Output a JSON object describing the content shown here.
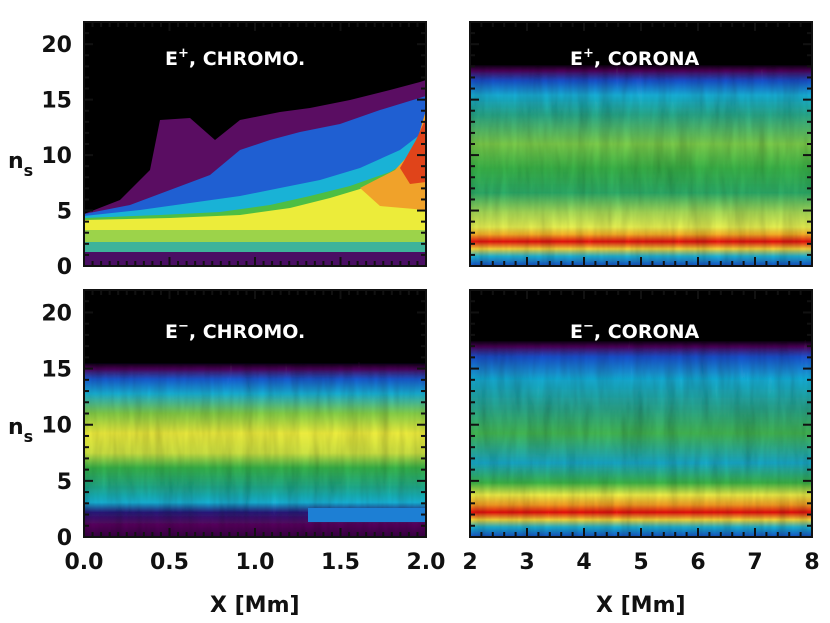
{
  "chart_data": [
    {
      "type": "heatmap",
      "panel": "top-left",
      "title": "E+, CHROMO.",
      "title_main": "E",
      "title_sup": "+",
      "title_rest": ", CHROMO.",
      "xlabel": "",
      "ylabel": "n",
      "ylabel_sub": "s",
      "xlim": [
        0.0,
        2.0
      ],
      "ylim": [
        0,
        22
      ],
      "x_ticks": [],
      "y_ticks": [
        "0",
        "5",
        "10",
        "15",
        "20"
      ],
      "description_bands": [
        {
          "y_from": 0.6,
          "y_to": 1.2,
          "color": "purple"
        },
        {
          "y_from": 1.2,
          "y_to": 2.2,
          "color": "cyan"
        },
        {
          "y_from": 2.2,
          "y_to": 4.3,
          "color": "yellow"
        },
        {
          "y_from": 4.3,
          "y_to": 5,
          "color": "green"
        }
      ]
    },
    {
      "type": "heatmap",
      "panel": "top-right",
      "title": "E+, CORONA",
      "title_main": "E",
      "title_sup": "+",
      "title_rest": ", CORONA",
      "xlabel": "",
      "ylabel": "",
      "xlim": [
        2,
        8
      ],
      "ylim": [
        0,
        22
      ],
      "x_ticks": [],
      "y_ticks": []
    },
    {
      "type": "heatmap",
      "panel": "bottom-left",
      "title": "E−, CHROMO.",
      "title_main": "E",
      "title_sup": "−",
      "title_rest": ", CHROMO.",
      "xlabel": "X [Mm]",
      "ylabel": "n",
      "ylabel_sub": "s",
      "xlim": [
        0.0,
        2.0
      ],
      "ylim": [
        0,
        22
      ],
      "x_ticks": [
        "0.0",
        "0.5",
        "1.0",
        "1.5",
        "2.0"
      ],
      "y_ticks": [
        "0",
        "5",
        "10",
        "15",
        "20"
      ]
    },
    {
      "type": "heatmap",
      "panel": "bottom-right",
      "title": "E−, CORONA",
      "title_main": "E",
      "title_sup": "−",
      "title_rest": ", CORONA",
      "xlabel": "X [Mm]",
      "ylabel": "",
      "xlim": [
        2,
        8
      ],
      "ylim": [
        0,
        22
      ],
      "x_ticks": [
        "2",
        "3",
        "4",
        "5",
        "6",
        "7",
        "8"
      ],
      "y_ticks": []
    }
  ],
  "colors": {
    "black": "#000000",
    "purple": "#5a0a5c",
    "magenta": "#7a1f8a",
    "blue": "#1e6ad8",
    "cyan": "#18b4d8",
    "teal": "#17a985",
    "green": "#36b83c",
    "lightgreen": "#8cd24a",
    "yellow": "#f2f23a",
    "orange": "#f08a1e",
    "red": "#e81414"
  }
}
